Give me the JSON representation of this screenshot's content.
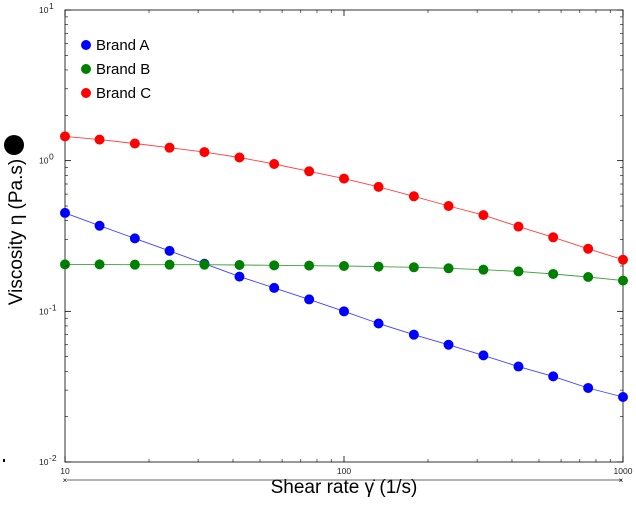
{
  "chart_data": {
    "type": "line",
    "xscale": "log",
    "yscale": "log",
    "xlim": [
      10,
      1000
    ],
    "ylim": [
      0.01,
      10
    ],
    "grid": false,
    "legend_position": "top-left",
    "xlabel": "Shear rate γ̇  (1/s)",
    "ylabel": "Viscosity η  (Pa.s)",
    "x_ticks": [
      {
        "value": 10,
        "base": "10",
        "exp": ""
      },
      {
        "value": 100,
        "base": "100",
        "exp": ""
      },
      {
        "value": 1000,
        "base": "1000",
        "exp": ""
      }
    ],
    "y_ticks": [
      {
        "value": 10,
        "base": "10",
        "exp": "1"
      },
      {
        "value": 1,
        "base": "10",
        "exp": "0"
      },
      {
        "value": 0.1,
        "base": "10",
        "exp": "-1"
      },
      {
        "value": 0.01,
        "base": "10",
        "exp": "-2"
      }
    ],
    "x": [
      10,
      13.3,
      17.8,
      23.7,
      31.6,
      42.2,
      56.2,
      75.0,
      100,
      133,
      178,
      237,
      316,
      422,
      562,
      750,
      1000
    ],
    "series": [
      {
        "name": "Brand A",
        "color": "#0000ff",
        "values": [
          0.45,
          0.37,
          0.305,
          0.252,
          0.207,
          0.17,
          0.143,
          0.12,
          0.1,
          0.083,
          0.07,
          0.06,
          0.051,
          0.043,
          0.037,
          0.031,
          0.027
        ]
      },
      {
        "name": "Brand B",
        "color": "#008000",
        "values": [
          0.205,
          0.205,
          0.204,
          0.204,
          0.204,
          0.203,
          0.202,
          0.201,
          0.2,
          0.198,
          0.196,
          0.193,
          0.189,
          0.184,
          0.177,
          0.169,
          0.16
        ]
      },
      {
        "name": "Brand C",
        "color": "#ff0000",
        "values": [
          1.45,
          1.38,
          1.3,
          1.22,
          1.14,
          1.05,
          0.95,
          0.85,
          0.76,
          0.67,
          0.58,
          0.5,
          0.435,
          0.365,
          0.31,
          0.26,
          0.22
        ]
      }
    ]
  }
}
